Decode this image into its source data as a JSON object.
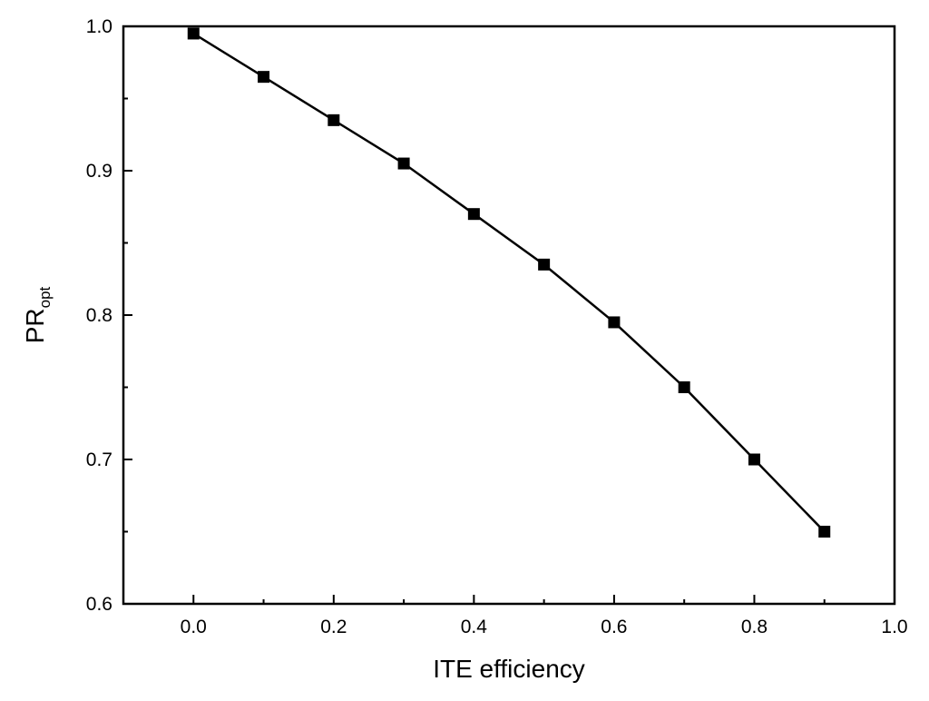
{
  "chart_data": {
    "type": "line",
    "title": "",
    "xlabel": "ITE efficiency",
    "ylabel": {
      "main": "PR",
      "subscript": "opt"
    },
    "xlim": [
      -0.1,
      1.0
    ],
    "ylim": [
      0.6,
      1.0
    ],
    "x_ticks": [
      0.0,
      0.2,
      0.4,
      0.6,
      0.8,
      1.0
    ],
    "x_tick_labels": [
      "0.0",
      "0.2",
      "0.4",
      "0.6",
      "0.8",
      "1.0"
    ],
    "y_ticks": [
      0.6,
      0.7,
      0.8,
      0.9,
      1.0
    ],
    "y_tick_labels": [
      "0.6",
      "0.7",
      "0.8",
      "0.9",
      "1.0"
    ],
    "grid": false,
    "marker": "square",
    "line_color": "#000000",
    "series": [
      {
        "x": [
          0.0,
          0.1,
          0.2,
          0.3,
          0.4,
          0.5,
          0.6,
          0.7,
          0.8,
          0.9
        ],
        "y": [
          0.995,
          0.965,
          0.935,
          0.905,
          0.87,
          0.835,
          0.795,
          0.75,
          0.7,
          0.65
        ]
      }
    ]
  }
}
